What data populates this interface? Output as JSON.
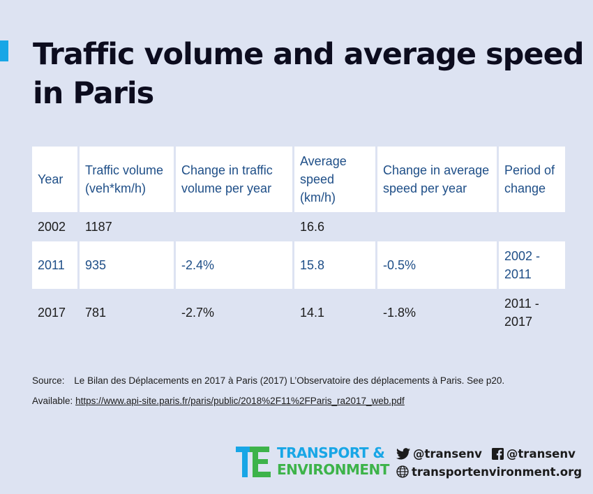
{
  "title": "Traffic volume and average speed in Paris",
  "colors": {
    "accent": "#18a6e6",
    "blue_text": "#1e4e87",
    "brand_green": "#3db34a",
    "background": "#dde3f2"
  },
  "table": {
    "headers": [
      "Year",
      "Traffic volume (veh*km/h)",
      "Change in traffic volume per year",
      "Average speed (km/h)",
      "Change in average speed per year",
      "Period of change"
    ],
    "rows": [
      [
        "2002",
        "1187",
        "",
        "16.6",
        "",
        ""
      ],
      [
        "2011",
        "935",
        "-2.4%",
        "15.8",
        "-0.5%",
        "2002 - 2011"
      ],
      [
        "2017",
        "781",
        "-2.7%",
        "14.1",
        "-1.8%",
        "2011 - 2017"
      ]
    ]
  },
  "source": {
    "label": "Source:",
    "text": "Le Bilan des Déplacements en 2017 à Paris (2017) L’Observatoire des déplacements à Paris. See p20."
  },
  "available": {
    "label": "Available:",
    "url": "https://www.api-site.paris.fr/paris/public/2018%2F11%2FParis_ra2017_web.pdf"
  },
  "logo": {
    "line1": "TRANSPORT &",
    "line2": "ENVIRONMENT"
  },
  "social": {
    "twitter": "@transenv",
    "facebook": "@transenv",
    "website": "transportenvironment.org"
  },
  "icons": [
    "twitter-icon",
    "facebook-icon",
    "globe-icon",
    "te-logo-icon"
  ]
}
